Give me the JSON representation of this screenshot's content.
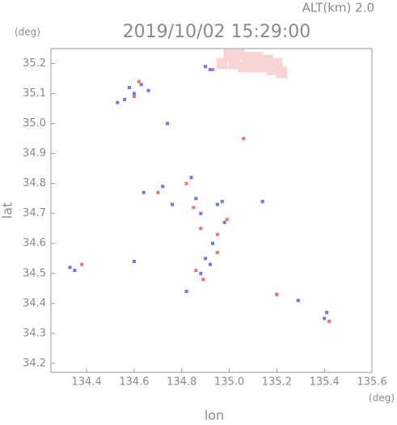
{
  "chart_data": {
    "type": "scatter",
    "title": "2019/10/02 15:29:00",
    "header": "ALT(km) 2.0",
    "y_unit": "(deg)",
    "x_unit": "(deg)",
    "xlabel": "lon",
    "ylabel": "lat",
    "xlim": [
      134.25,
      135.6
    ],
    "ylim": [
      34.17,
      35.25
    ],
    "xticks": [
      134.4,
      134.6,
      134.8,
      {
        "value": 135.0,
        "label": "135.0"
      },
      135.2,
      135.4,
      135.6
    ],
    "yticks": [
      34.2,
      34.3,
      34.4,
      34.5,
      34.6,
      34.7,
      34.8,
      34.9,
      {
        "value": 35.0,
        "label": "35.0"
      },
      35.1,
      35.2
    ],
    "series": [
      {
        "color": "#f9d4d4",
        "marker_size": 14,
        "x": [
          135.0,
          135.04,
          135.08,
          135.12,
          135.16,
          135.2,
          135.02,
          135.06,
          135.1,
          135.14,
          135.18,
          135.22,
          134.97
        ],
        "values": [
          35.23,
          35.23,
          35.22,
          35.22,
          35.21,
          35.2,
          35.2,
          35.19,
          35.19,
          35.19,
          35.18,
          35.17,
          35.2
        ]
      },
      {
        "color": "#6f74f2",
        "marker_size": 4,
        "x": [
          134.53,
          134.56,
          134.6,
          134.58,
          134.63,
          134.66,
          134.74,
          134.9,
          134.92,
          134.84,
          134.86,
          134.88,
          134.95,
          134.97,
          134.72,
          134.64,
          134.93,
          134.9,
          134.88,
          134.92,
          134.33,
          134.35,
          135.2,
          135.29,
          135.4,
          135.41,
          134.82,
          134.6,
          135.14,
          134.76,
          134.98
        ],
        "values": [
          35.07,
          35.08,
          35.1,
          35.12,
          35.13,
          35.11,
          35.0,
          35.19,
          35.18,
          34.82,
          34.75,
          34.7,
          34.73,
          34.74,
          34.79,
          34.77,
          34.6,
          34.55,
          34.5,
          34.53,
          34.52,
          34.51,
          34.43,
          34.41,
          34.35,
          34.37,
          34.44,
          34.54,
          34.74,
          34.73,
          34.67
        ]
      },
      {
        "color": "#f07272",
        "marker_size": 4,
        "x": [
          134.62,
          134.6,
          134.93,
          134.82,
          134.85,
          134.86,
          134.89,
          134.99,
          134.95,
          134.38,
          135.06,
          135.42,
          135.2,
          134.88,
          134.7,
          134.95
        ],
        "values": [
          35.14,
          35.09,
          35.18,
          34.8,
          34.72,
          34.51,
          34.48,
          34.68,
          34.57,
          34.53,
          34.95,
          34.34,
          34.43,
          34.65,
          34.77,
          34.63
        ]
      }
    ]
  }
}
